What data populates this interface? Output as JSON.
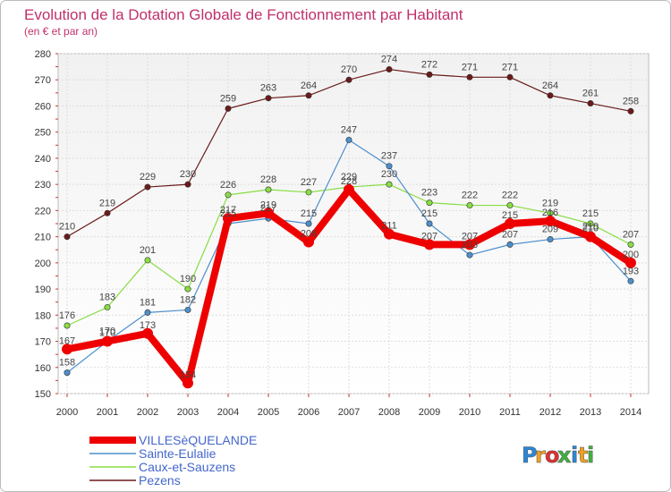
{
  "chart_data": {
    "type": "line",
    "title": "Evolution de la Dotation Globale de Fonctionnement par Habitant",
    "subtitle": "(en € et par an)",
    "xlabel": "",
    "ylabel": "",
    "ylim": [
      150,
      280
    ],
    "yticks": [
      150,
      160,
      170,
      180,
      190,
      200,
      210,
      220,
      230,
      240,
      250,
      260,
      270,
      280
    ],
    "grid": true,
    "legend_position": "bottom-left",
    "x": [
      "2000",
      "2001",
      "2002",
      "2003",
      "2004",
      "2005",
      "2006",
      "2007",
      "2008",
      "2009",
      "2010",
      "2011",
      "2012",
      "2013",
      "2014"
    ],
    "series": [
      {
        "name": "Pezens",
        "color": "#6b1a1a",
        "values": [
          210,
          219,
          229,
          230,
          259,
          263,
          264,
          270,
          274,
          272,
          271,
          271,
          264,
          261,
          258
        ]
      },
      {
        "name": "Caux-et-Sauzens",
        "color": "#88dd44",
        "values": [
          176,
          183,
          201,
          190,
          226,
          228,
          227,
          229,
          230,
          223,
          222,
          222,
          219,
          215,
          207
        ]
      },
      {
        "name": "Sainte-Eulalie",
        "color": "#4d8fcc",
        "values": [
          158,
          170,
          181,
          182,
          215,
          217,
          215,
          247,
          237,
          215,
          203,
          207,
          209,
          210,
          193
        ]
      },
      {
        "name": "VILLESèQUELANDE",
        "color": "#ee0000",
        "values": [
          167,
          170,
          173,
          154,
          217,
          219,
          208,
          228,
          211,
          207,
          207,
          215,
          216,
          210,
          200
        ]
      }
    ],
    "legend_order": [
      "VILLESèQUELANDE",
      "Sainte-Eulalie",
      "Caux-et-Sauzens",
      "Pezens"
    ]
  },
  "branding": {
    "logo_letters": [
      "P",
      "r",
      "o",
      "x",
      "i",
      "t",
      "i"
    ],
    "logo_colors": [
      "#2b86d6",
      "#f0a020",
      "#e03030",
      "#40b040",
      "#2b86d6",
      "#f0a020",
      "#40b040"
    ]
  },
  "colors": {
    "title": "#c0306a",
    "axis_text": "#333333",
    "plot_bg_top": "#f4f4f4",
    "plot_bg_bottom": "#ffffff",
    "legend_text": "#4466cc"
  }
}
